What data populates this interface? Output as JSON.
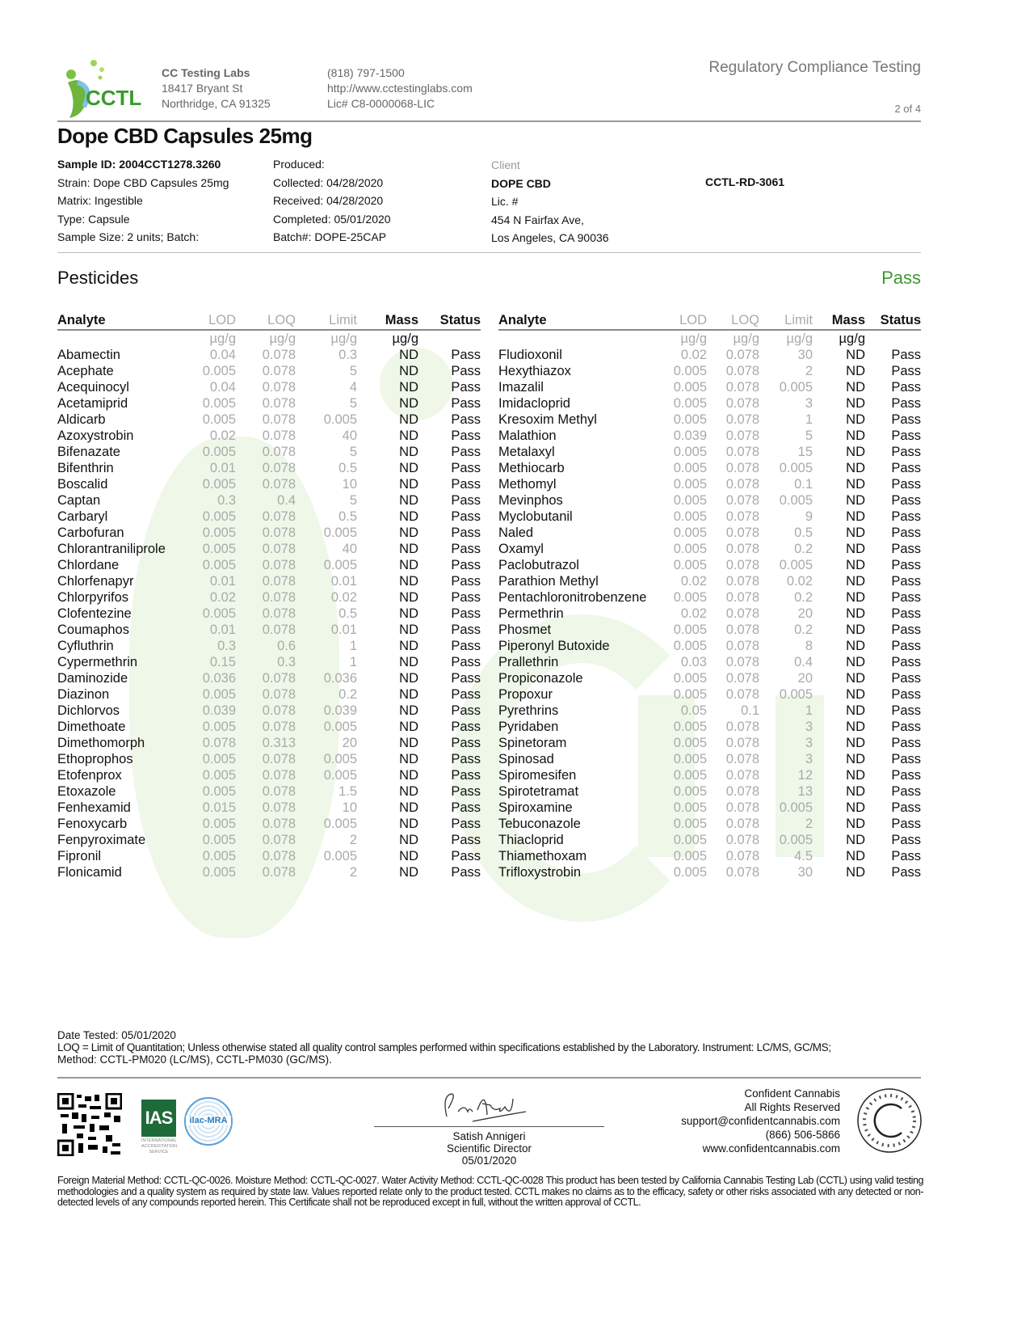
{
  "header": {
    "logo_text": "CCTL",
    "lab_name": "CC Testing Labs",
    "address1": "18417 Bryant St",
    "address2": "Northridge, CA 91325",
    "phone": "(818) 797-1500",
    "website": "http://www.cctestinglabs.com",
    "license": "Lic# C8-0000068-LIC",
    "tagline": "Regulatory Compliance Testing",
    "page": "2 of 4"
  },
  "product_title": "Dope CBD Capsules 25mg",
  "sample": {
    "col1": [
      "Sample ID: 2004CCT1278.3260",
      "Strain: Dope CBD Capsules 25mg",
      "Matrix: Ingestible",
      "Type: Capsule",
      "Sample Size: 2 units; Batch:"
    ],
    "col2": [
      "Produced:",
      "Collected: 04/28/2020",
      "Received: 04/28/2020",
      "Completed: 05/01/2020",
      "Batch#: DOPE-25CAP"
    ],
    "client_label": "Client",
    "client_name": "DOPE CBD",
    "client_lic": "Lic. #",
    "client_addr1": "454 N Fairfax Ave,",
    "client_addr2": "Los Angeles, CA 90036",
    "report_id": "CCTL-RD-3061"
  },
  "section": {
    "title": "Pesticides",
    "result": "Pass",
    "result_color": "#3a9a2e"
  },
  "table": {
    "headers": [
      "Analyte",
      "LOD",
      "LOQ",
      "Limit",
      "Mass",
      "Status"
    ],
    "units": [
      "",
      "µg/g",
      "µg/g",
      "µg/g",
      "µg/g",
      ""
    ],
    "left": [
      [
        "Abamectin",
        "0.04",
        "0.078",
        "0.3",
        "ND",
        "Pass"
      ],
      [
        "Acephate",
        "0.005",
        "0.078",
        "5",
        "ND",
        "Pass"
      ],
      [
        "Acequinocyl",
        "0.04",
        "0.078",
        "4",
        "ND",
        "Pass"
      ],
      [
        "Acetamiprid",
        "0.005",
        "0.078",
        "5",
        "ND",
        "Pass"
      ],
      [
        "Aldicarb",
        "0.005",
        "0.078",
        "0.005",
        "ND",
        "Pass"
      ],
      [
        "Azoxystrobin",
        "0.02",
        "0.078",
        "40",
        "ND",
        "Pass"
      ],
      [
        "Bifenazate",
        "0.005",
        "0.078",
        "5",
        "ND",
        "Pass"
      ],
      [
        "Bifenthrin",
        "0.01",
        "0.078",
        "0.5",
        "ND",
        "Pass"
      ],
      [
        "Boscalid",
        "0.005",
        "0.078",
        "10",
        "ND",
        "Pass"
      ],
      [
        "Captan",
        "0.3",
        "0.4",
        "5",
        "ND",
        "Pass"
      ],
      [
        "Carbaryl",
        "0.005",
        "0.078",
        "0.5",
        "ND",
        "Pass"
      ],
      [
        "Carbofuran",
        "0.005",
        "0.078",
        "0.005",
        "ND",
        "Pass"
      ],
      [
        "Chlorantraniliprole",
        "0.005",
        "0.078",
        "40",
        "ND",
        "Pass"
      ],
      [
        "Chlordane",
        "0.005",
        "0.078",
        "0.005",
        "ND",
        "Pass"
      ],
      [
        "Chlorfenapyr",
        "0.01",
        "0.078",
        "0.01",
        "ND",
        "Pass"
      ],
      [
        "Chlorpyrifos",
        "0.02",
        "0.078",
        "0.02",
        "ND",
        "Pass"
      ],
      [
        "Clofentezine",
        "0.005",
        "0.078",
        "0.5",
        "ND",
        "Pass"
      ],
      [
        "Coumaphos",
        "0.01",
        "0.078",
        "0.01",
        "ND",
        "Pass"
      ],
      [
        "Cyfluthrin",
        "0.3",
        "0.6",
        "1",
        "ND",
        "Pass"
      ],
      [
        "Cypermethrin",
        "0.15",
        "0.3",
        "1",
        "ND",
        "Pass"
      ],
      [
        "Daminozide",
        "0.036",
        "0.078",
        "0.036",
        "ND",
        "Pass"
      ],
      [
        "Diazinon",
        "0.005",
        "0.078",
        "0.2",
        "ND",
        "Pass"
      ],
      [
        "Dichlorvos",
        "0.039",
        "0.078",
        "0.039",
        "ND",
        "Pass"
      ],
      [
        "Dimethoate",
        "0.005",
        "0.078",
        "0.005",
        "ND",
        "Pass"
      ],
      [
        "Dimethomorph",
        "0.078",
        "0.313",
        "20",
        "ND",
        "Pass"
      ],
      [
        "Ethoprophos",
        "0.005",
        "0.078",
        "0.005",
        "ND",
        "Pass"
      ],
      [
        "Etofenprox",
        "0.005",
        "0.078",
        "0.005",
        "ND",
        "Pass"
      ],
      [
        "Etoxazole",
        "0.005",
        "0.078",
        "1.5",
        "ND",
        "Pass"
      ],
      [
        "Fenhexamid",
        "0.015",
        "0.078",
        "10",
        "ND",
        "Pass"
      ],
      [
        "Fenoxycarb",
        "0.005",
        "0.078",
        "0.005",
        "ND",
        "Pass"
      ],
      [
        "Fenpyroximate",
        "0.005",
        "0.078",
        "2",
        "ND",
        "Pass"
      ],
      [
        "Fipronil",
        "0.005",
        "0.078",
        "0.005",
        "ND",
        "Pass"
      ],
      [
        "Flonicamid",
        "0.005",
        "0.078",
        "2",
        "ND",
        "Pass"
      ]
    ],
    "right": [
      [
        "Fludioxonil",
        "0.02",
        "0.078",
        "30",
        "ND",
        "Pass"
      ],
      [
        "Hexythiazox",
        "0.005",
        "0.078",
        "2",
        "ND",
        "Pass"
      ],
      [
        "Imazalil",
        "0.005",
        "0.078",
        "0.005",
        "ND",
        "Pass"
      ],
      [
        "Imidacloprid",
        "0.005",
        "0.078",
        "3",
        "ND",
        "Pass"
      ],
      [
        "Kresoxim Methyl",
        "0.005",
        "0.078",
        "1",
        "ND",
        "Pass"
      ],
      [
        "Malathion",
        "0.039",
        "0.078",
        "5",
        "ND",
        "Pass"
      ],
      [
        "Metalaxyl",
        "0.005",
        "0.078",
        "15",
        "ND",
        "Pass"
      ],
      [
        "Methiocarb",
        "0.005",
        "0.078",
        "0.005",
        "ND",
        "Pass"
      ],
      [
        "Methomyl",
        "0.005",
        "0.078",
        "0.1",
        "ND",
        "Pass"
      ],
      [
        "Mevinphos",
        "0.005",
        "0.078",
        "0.005",
        "ND",
        "Pass"
      ],
      [
        "Myclobutanil",
        "0.005",
        "0.078",
        "9",
        "ND",
        "Pass"
      ],
      [
        "Naled",
        "0.005",
        "0.078",
        "0.5",
        "ND",
        "Pass"
      ],
      [
        "Oxamyl",
        "0.005",
        "0.078",
        "0.2",
        "ND",
        "Pass"
      ],
      [
        "Paclobutrazol",
        "0.005",
        "0.078",
        "0.005",
        "ND",
        "Pass"
      ],
      [
        "Parathion Methyl",
        "0.02",
        "0.078",
        "0.02",
        "ND",
        "Pass"
      ],
      [
        "Pentachloronitrobenzene",
        "0.005",
        "0.078",
        "0.2",
        "ND",
        "Pass"
      ],
      [
        "Permethrin",
        "0.02",
        "0.078",
        "20",
        "ND",
        "Pass"
      ],
      [
        "Phosmet",
        "0.005",
        "0.078",
        "0.2",
        "ND",
        "Pass"
      ],
      [
        "Piperonyl Butoxide",
        "0.005",
        "0.078",
        "8",
        "ND",
        "Pass"
      ],
      [
        "Prallethrin",
        "0.03",
        "0.078",
        "0.4",
        "ND",
        "Pass"
      ],
      [
        "Propiconazole",
        "0.005",
        "0.078",
        "20",
        "ND",
        "Pass"
      ],
      [
        "Propoxur",
        "0.005",
        "0.078",
        "0.005",
        "ND",
        "Pass"
      ],
      [
        "Pyrethrins",
        "0.05",
        "0.1",
        "1",
        "ND",
        "Pass"
      ],
      [
        "Pyridaben",
        "0.005",
        "0.078",
        "3",
        "ND",
        "Pass"
      ],
      [
        "Spinetoram",
        "0.005",
        "0.078",
        "3",
        "ND",
        "Pass"
      ],
      [
        "Spinosad",
        "0.005",
        "0.078",
        "3",
        "ND",
        "Pass"
      ],
      [
        "Spiromesifen",
        "0.005",
        "0.078",
        "12",
        "ND",
        "Pass"
      ],
      [
        "Spirotetramat",
        "0.005",
        "0.078",
        "13",
        "ND",
        "Pass"
      ],
      [
        "Spiroxamine",
        "0.005",
        "0.078",
        "0.005",
        "ND",
        "Pass"
      ],
      [
        "Tebuconazole",
        "0.005",
        "0.078",
        "2",
        "ND",
        "Pass"
      ],
      [
        "Thiacloprid",
        "0.005",
        "0.078",
        "0.005",
        "ND",
        "Pass"
      ],
      [
        "Thiamethoxam",
        "0.005",
        "0.078",
        "4.5",
        "ND",
        "Pass"
      ],
      [
        "Trifloxystrobin",
        "0.005",
        "0.078",
        "30",
        "ND",
        "Pass"
      ]
    ]
  },
  "notes": {
    "date_tested": "Date Tested: 05/01/2020",
    "line1": "LOQ = Limit of Quantitation; Unless otherwise stated all quality control samples performed within specifications established by the Laboratory. Instrument: LC/MS, GC/MS;",
    "line2": "Method: CCTL-PM020 (LC/MS), CCTL-PM030 (GC/MS)."
  },
  "footer": {
    "ias_text": "IAS",
    "ias_sub": "INTERNATIONAL ACCREDITATION SERVICE",
    "ilac_text": "ilac-MRA",
    "signer_name": "Satish Annigeri",
    "signer_title": "Scientific Director",
    "signer_date": "05/01/2020",
    "cc_name": "Confident Cannabis",
    "cc_rights": "All Rights Reserved",
    "cc_email": "support@confidentcannabis.com",
    "cc_phone": "(866) 506-5866",
    "cc_web": "www.confidentcannabis.com",
    "seal_text": "CONFIDENT CANNABIS",
    "disclaimer": "Foreign Material Method: CCTL-QC-0026. Moisture Method: CCTL-QC-0027. Water Activity Method: CCTL-QC-0028 This product has been tested by California Cannabis Testing Lab (CCTL) using valid testing methodologies and a quality system as required by state law. Values reported relate only to the product tested. CCTL makes no claims as to the efficacy, safety or other risks associated with any detected or non-detected levels of any compounds reported herein. This Certificate shall not be reproduced except in full, without the written approval of CCTL."
  }
}
